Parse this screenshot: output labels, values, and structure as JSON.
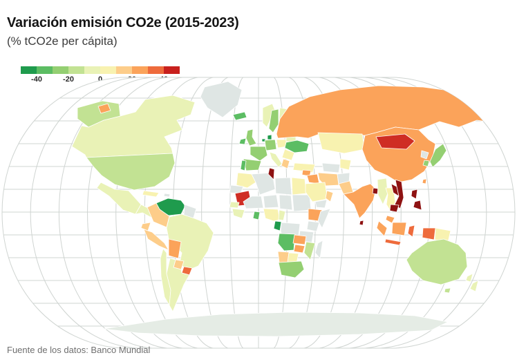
{
  "header": {
    "title": "Variación emisión CO2e (2015-2023)",
    "subtitle": "(% tCO2e per cápita)"
  },
  "footer": {
    "source": "Fuente de los datos: Banco Mundial"
  },
  "chart_data": {
    "type": "heatmap",
    "subtype": "choropleth-world-map",
    "title": "Variación emisión CO2e (2015-2023)",
    "units": "% tCO2e per cápita",
    "period": "2015-2023",
    "projection": "robinson-like",
    "legend": {
      "position": "top-left",
      "min": -50,
      "max": 50,
      "bin_size": 10,
      "tick_labels": [
        "-40",
        "-20",
        "0",
        "20",
        "40"
      ],
      "colors": [
        "#1f9b4d",
        "#5cbd63",
        "#94cf72",
        "#c2e293",
        "#e9f2b6",
        "#f8f2b0",
        "#fdcd8a",
        "#fba35a",
        "#ee6b3c",
        "#c8201d"
      ]
    },
    "no_data_color": "#dfe6e4",
    "ocean_color": "#ffffff",
    "graticule_color": "#cfd4d1",
    "antarctica_color": "#e5ece5",
    "countries": [
      {
        "id": "canada",
        "name": "Canadá",
        "value_est_pct": -5,
        "color": "#e9f2b6"
      },
      {
        "id": "eeuu",
        "name": "Estados Unidos",
        "value_est_pct": -15,
        "color": "#c2e293"
      },
      {
        "id": "alaska",
        "name": "Estados Unidos (Alaska)",
        "value_est_pct": -15,
        "color": "#c2e293"
      },
      {
        "id": "mexico",
        "name": "México",
        "value_est_pct": -5,
        "color": "#e9f2b6"
      },
      {
        "id": "america-central",
        "name": "América Central",
        "value_est_pct": -5,
        "color": "#e9f2b6"
      },
      {
        "id": "panama",
        "name": "Panamá",
        "value_est_pct": 55,
        "color": "#8e1212"
      },
      {
        "id": "cuba",
        "name": "Cuba",
        "value_est_pct": 5,
        "color": "#f8f2b0"
      },
      {
        "id": "la-espanola",
        "name": "La Española",
        "value_est_pct": null,
        "color": "#dfe6e4"
      },
      {
        "id": "groenlandia",
        "name": "Groenlandia",
        "value_est_pct": null,
        "color": "#dfe6e4"
      },
      {
        "id": "venezuela",
        "name": "Venezuela",
        "value_est_pct": -48,
        "color": "#1f9b4d"
      },
      {
        "id": "colombia",
        "name": "Colombia",
        "value_est_pct": 15,
        "color": "#fdcd8a"
      },
      {
        "id": "ecuador",
        "name": "Ecuador",
        "value_est_pct": 15,
        "color": "#fdcd8a"
      },
      {
        "id": "peru",
        "name": "Perú",
        "value_est_pct": 15,
        "color": "#fdcd8a"
      },
      {
        "id": "bolivia",
        "name": "Bolivia",
        "value_est_pct": 25,
        "color": "#fba35a"
      },
      {
        "id": "brasil",
        "name": "Brasil",
        "value_est_pct": -5,
        "color": "#e9f2b6"
      },
      {
        "id": "paraguay",
        "name": "Paraguay",
        "value_est_pct": 15,
        "color": "#fdcd8a"
      },
      {
        "id": "uruguay",
        "name": "Uruguay",
        "value_est_pct": 35,
        "color": "#ee6b3c"
      },
      {
        "id": "argentina",
        "name": "Argentina",
        "value_est_pct": -5,
        "color": "#e9f2b6"
      },
      {
        "id": "chile",
        "name": "Chile",
        "value_est_pct": -5,
        "color": "#e9f2b6"
      },
      {
        "id": "guyanas",
        "name": "Guyana y Surinam",
        "value_est_pct": null,
        "color": "#dfe6e4"
      },
      {
        "id": "islandia",
        "name": "Islandia",
        "value_est_pct": -35,
        "color": "#5cbd63"
      },
      {
        "id": "irlanda",
        "name": "Irlanda",
        "value_est_pct": -35,
        "color": "#5cbd63"
      },
      {
        "id": "reino-unido",
        "name": "Reino Unido",
        "value_est_pct": -25,
        "color": "#94cf72"
      },
      {
        "id": "portugal",
        "name": "Portugal",
        "value_est_pct": -35,
        "color": "#5cbd63"
      },
      {
        "id": "espana",
        "name": "España",
        "value_est_pct": -25,
        "color": "#94cf72"
      },
      {
        "id": "francia",
        "name": "Francia",
        "value_est_pct": -25,
        "color": "#94cf72"
      },
      {
        "id": "alemania",
        "name": "Alemania",
        "value_est_pct": -25,
        "color": "#94cf72"
      },
      {
        "id": "paises-bajos",
        "name": "Países Bajos",
        "value_est_pct": -45,
        "color": "#1f9b4d"
      },
      {
        "id": "dinamarca",
        "name": "Dinamarca",
        "value_est_pct": -48,
        "color": "#1f9b4d"
      },
      {
        "id": "noruega",
        "name": "Noruega",
        "value_est_pct": -5,
        "color": "#e9f2b6"
      },
      {
        "id": "suecia",
        "name": "Suecia",
        "value_est_pct": -25,
        "color": "#94cf72"
      },
      {
        "id": "finlandia",
        "name": "Finlandia",
        "value_est_pct": -5,
        "color": "#e9f2b6"
      },
      {
        "id": "estonia",
        "name": "Estonia",
        "value_est_pct": -48,
        "color": "#1f9b4d"
      },
      {
        "id": "polonia",
        "name": "Polonia",
        "value_est_pct": 5,
        "color": "#f8f2b0"
      },
      {
        "id": "bielorrusia",
        "name": "Bielorrusia",
        "value_est_pct": -5,
        "color": "#e9f2b6"
      },
      {
        "id": "ucrania",
        "name": "Ucrania",
        "value_est_pct": -35,
        "color": "#5cbd63"
      },
      {
        "id": "rumania",
        "name": "Rumanía",
        "value_est_pct": 5,
        "color": "#f8f2b0"
      },
      {
        "id": "italia",
        "name": "Italia",
        "value_est_pct": -5,
        "color": "#e9f2b6"
      },
      {
        "id": "grecia",
        "name": "Grecia",
        "value_est_pct": 15,
        "color": "#fdcd8a"
      },
      {
        "id": "turquia",
        "name": "Turquía",
        "value_est_pct": 5,
        "color": "#f8f2b0"
      },
      {
        "id": "rusia",
        "name": "Rusia",
        "value_est_pct": 25,
        "color": "#fba35a"
      },
      {
        "id": "kazajistan",
        "name": "Kazajistán",
        "value_est_pct": 5,
        "color": "#f8f2b0"
      },
      {
        "id": "uzbekistan",
        "name": "Uzbekistán",
        "value_est_pct": 5,
        "color": "#f8f2b0"
      },
      {
        "id": "turkmenistan",
        "name": "Turkmenistán",
        "value_est_pct": null,
        "color": "#dfe6e4"
      },
      {
        "id": "mongolia",
        "name": "Mongolia",
        "value_est_pct": 45,
        "color": "#cf2d24"
      },
      {
        "id": "china",
        "name": "China",
        "value_est_pct": 25,
        "color": "#fba35a"
      },
      {
        "id": "india",
        "name": "India",
        "value_est_pct": 25,
        "color": "#fba35a"
      },
      {
        "id": "pakistan",
        "name": "Pakistán",
        "value_est_pct": 15,
        "color": "#fdcd8a"
      },
      {
        "id": "afganistan",
        "name": "Afganistán",
        "value_est_pct": null,
        "color": "#dfe6e4"
      },
      {
        "id": "iran",
        "name": "Irán",
        "value_est_pct": 15,
        "color": "#fdcd8a"
      },
      {
        "id": "irak",
        "name": "Irak",
        "value_est_pct": 25,
        "color": "#fba35a"
      },
      {
        "id": "siria",
        "name": "Siria",
        "value_est_pct": 25,
        "color": "#fba35a"
      },
      {
        "id": "arabia-saudita",
        "name": "Arabia Saudita",
        "value_est_pct": 5,
        "color": "#f8f2b0"
      },
      {
        "id": "yemen",
        "name": "Yemen",
        "value_est_pct": null,
        "color": "#dfe6e4"
      },
      {
        "id": "oman",
        "name": "Omán",
        "value_est_pct": 15,
        "color": "#fdcd8a"
      },
      {
        "id": "bangladesh",
        "name": "Bangladés",
        "value_est_pct": 55,
        "color": "#8e1212"
      },
      {
        "id": "sri-lanka",
        "name": "Sri Lanka",
        "value_est_pct": 55,
        "color": "#8e1212"
      },
      {
        "id": "myanmar",
        "name": "Myanmar",
        "value_est_pct": -5,
        "color": "#e9f2b6"
      },
      {
        "id": "tailandia",
        "name": "Tailandia",
        "value_est_pct": 5,
        "color": "#f8f2b0"
      },
      {
        "id": "laos",
        "name": "Laos",
        "value_est_pct": 55,
        "color": "#8e1212"
      },
      {
        "id": "vietnam",
        "name": "Vietnam",
        "value_est_pct": 55,
        "color": "#8e1212"
      },
      {
        "id": "camboya",
        "name": "Camboya",
        "value_est_pct": 55,
        "color": "#8e1212"
      },
      {
        "id": "malasia",
        "name": "Malasia",
        "value_est_pct": 25,
        "color": "#fba35a"
      },
      {
        "id": "indonesia",
        "name": "Indonesia",
        "value_est_pct": 25,
        "color": "#fba35a"
      },
      {
        "id": "indonesia-islas",
        "name": "Indonesia (islas sur y este)",
        "value_est_pct": 35,
        "color": "#ee6b3c"
      },
      {
        "id": "filipinas",
        "name": "Filipinas",
        "value_est_pct": 55,
        "color": "#8e1212"
      },
      {
        "id": "taiwan",
        "name": "Taiwán",
        "value_est_pct": 25,
        "color": "#fba35a"
      },
      {
        "id": "japon",
        "name": "Japón",
        "value_est_pct": -25,
        "color": "#94cf72"
      },
      {
        "id": "corea-del-sur",
        "name": "Corea del Sur",
        "value_est_pct": -25,
        "color": "#94cf72"
      },
      {
        "id": "corea-del-norte",
        "name": "Corea del Norte",
        "value_est_pct": null,
        "color": "#dfe6e4"
      },
      {
        "id": "papua-nueva-guinea",
        "name": "Papúa Nueva Guinea",
        "value_est_pct": 5,
        "color": "#f8f2b0"
      },
      {
        "id": "australia",
        "name": "Australia",
        "value_est_pct": -15,
        "color": "#c2e293"
      },
      {
        "id": "nueva-zelanda",
        "name": "Nueva Zelanda",
        "value_est_pct": -5,
        "color": "#e9f2b6"
      },
      {
        "id": "marruecos",
        "name": "Marruecos",
        "value_est_pct": 5,
        "color": "#f8f2b0"
      },
      {
        "id": "sahara-occidental",
        "name": "Sahara Occidental",
        "value_est_pct": null,
        "color": "#dfe6e4"
      },
      {
        "id": "mauritania",
        "name": "Mauritania",
        "value_est_pct": 45,
        "color": "#cf2d24"
      },
      {
        "id": "tunez",
        "name": "Túnez",
        "value_est_pct": 55,
        "color": "#8e1212"
      },
      {
        "id": "argelia",
        "name": "Argelia",
        "value_est_pct": null,
        "color": "#dfe6e4"
      },
      {
        "id": "libia",
        "name": "Libia",
        "value_est_pct": null,
        "color": "#dfe6e4"
      },
      {
        "id": "egipto",
        "name": "Egipto",
        "value_est_pct": 5,
        "color": "#f8f2b0"
      },
      {
        "id": "mali",
        "name": "Malí",
        "value_est_pct": null,
        "color": "#dfe6e4"
      },
      {
        "id": "niger",
        "name": "Níger",
        "value_est_pct": null,
        "color": "#dfe6e4"
      },
      {
        "id": "chad",
        "name": "Chad",
        "value_est_pct": null,
        "color": "#dfe6e4"
      },
      {
        "id": "sudan",
        "name": "Sudán",
        "value_est_pct": null,
        "color": "#dfe6e4"
      },
      {
        "id": "senegal",
        "name": "Senegal",
        "value_est_pct": -5,
        "color": "#e9f2b6"
      },
      {
        "id": "guinea",
        "name": "Región de Guinea",
        "value_est_pct": -5,
        "color": "#e9f2b6"
      },
      {
        "id": "ghana",
        "name": "Ghana",
        "value_est_pct": -35,
        "color": "#5cbd63"
      },
      {
        "id": "nigeria",
        "name": "Nigeria",
        "value_est_pct": 5,
        "color": "#f8f2b0"
      },
      {
        "id": "camerun",
        "name": "Camerún",
        "value_est_pct": -5,
        "color": "#e9f2b6"
      },
      {
        "id": "gabon",
        "name": "Gabón",
        "value_est_pct": -48,
        "color": "#1f9b4d"
      },
      {
        "id": "rd-congo",
        "name": "RD Congo",
        "value_est_pct": null,
        "color": "#dfe6e4"
      },
      {
        "id": "etiopia",
        "name": "Etiopía",
        "value_est_pct": 25,
        "color": "#fba35a"
      },
      {
        "id": "somalia",
        "name": "Somalia",
        "value_est_pct": null,
        "color": "#dfe6e4"
      },
      {
        "id": "kenia",
        "name": "Kenia",
        "value_est_pct": null,
        "color": "#dfe6e4"
      },
      {
        "id": "tanzania",
        "name": "Tanzania",
        "value_est_pct": null,
        "color": "#dfe6e4"
      },
      {
        "id": "angola",
        "name": "Angola",
        "value_est_pct": -35,
        "color": "#5cbd63"
      },
      {
        "id": "zambia",
        "name": "Zambia",
        "value_est_pct": 25,
        "color": "#fba35a"
      },
      {
        "id": "zimbabue",
        "name": "Zimbabue",
        "value_est_pct": 25,
        "color": "#fba35a"
      },
      {
        "id": "mozambique",
        "name": "Mozambique",
        "value_est_pct": -15,
        "color": "#c2e293"
      },
      {
        "id": "namibia",
        "name": "Namibia",
        "value_est_pct": 15,
        "color": "#fdcd8a"
      },
      {
        "id": "botsuana",
        "name": "Botsuana",
        "value_est_pct": 5,
        "color": "#f8f2b0"
      },
      {
        "id": "sudafrica",
        "name": "Sudáfrica",
        "value_est_pct": -25,
        "color": "#94cf72"
      },
      {
        "id": "madagascar",
        "name": "Madagascar",
        "value_est_pct": null,
        "color": "#dfe6e4"
      },
      {
        "id": "chukotka",
        "name": "Rusia (Chukotka)",
        "value_est_pct": 25,
        "color": "#fba35a"
      }
    ]
  }
}
